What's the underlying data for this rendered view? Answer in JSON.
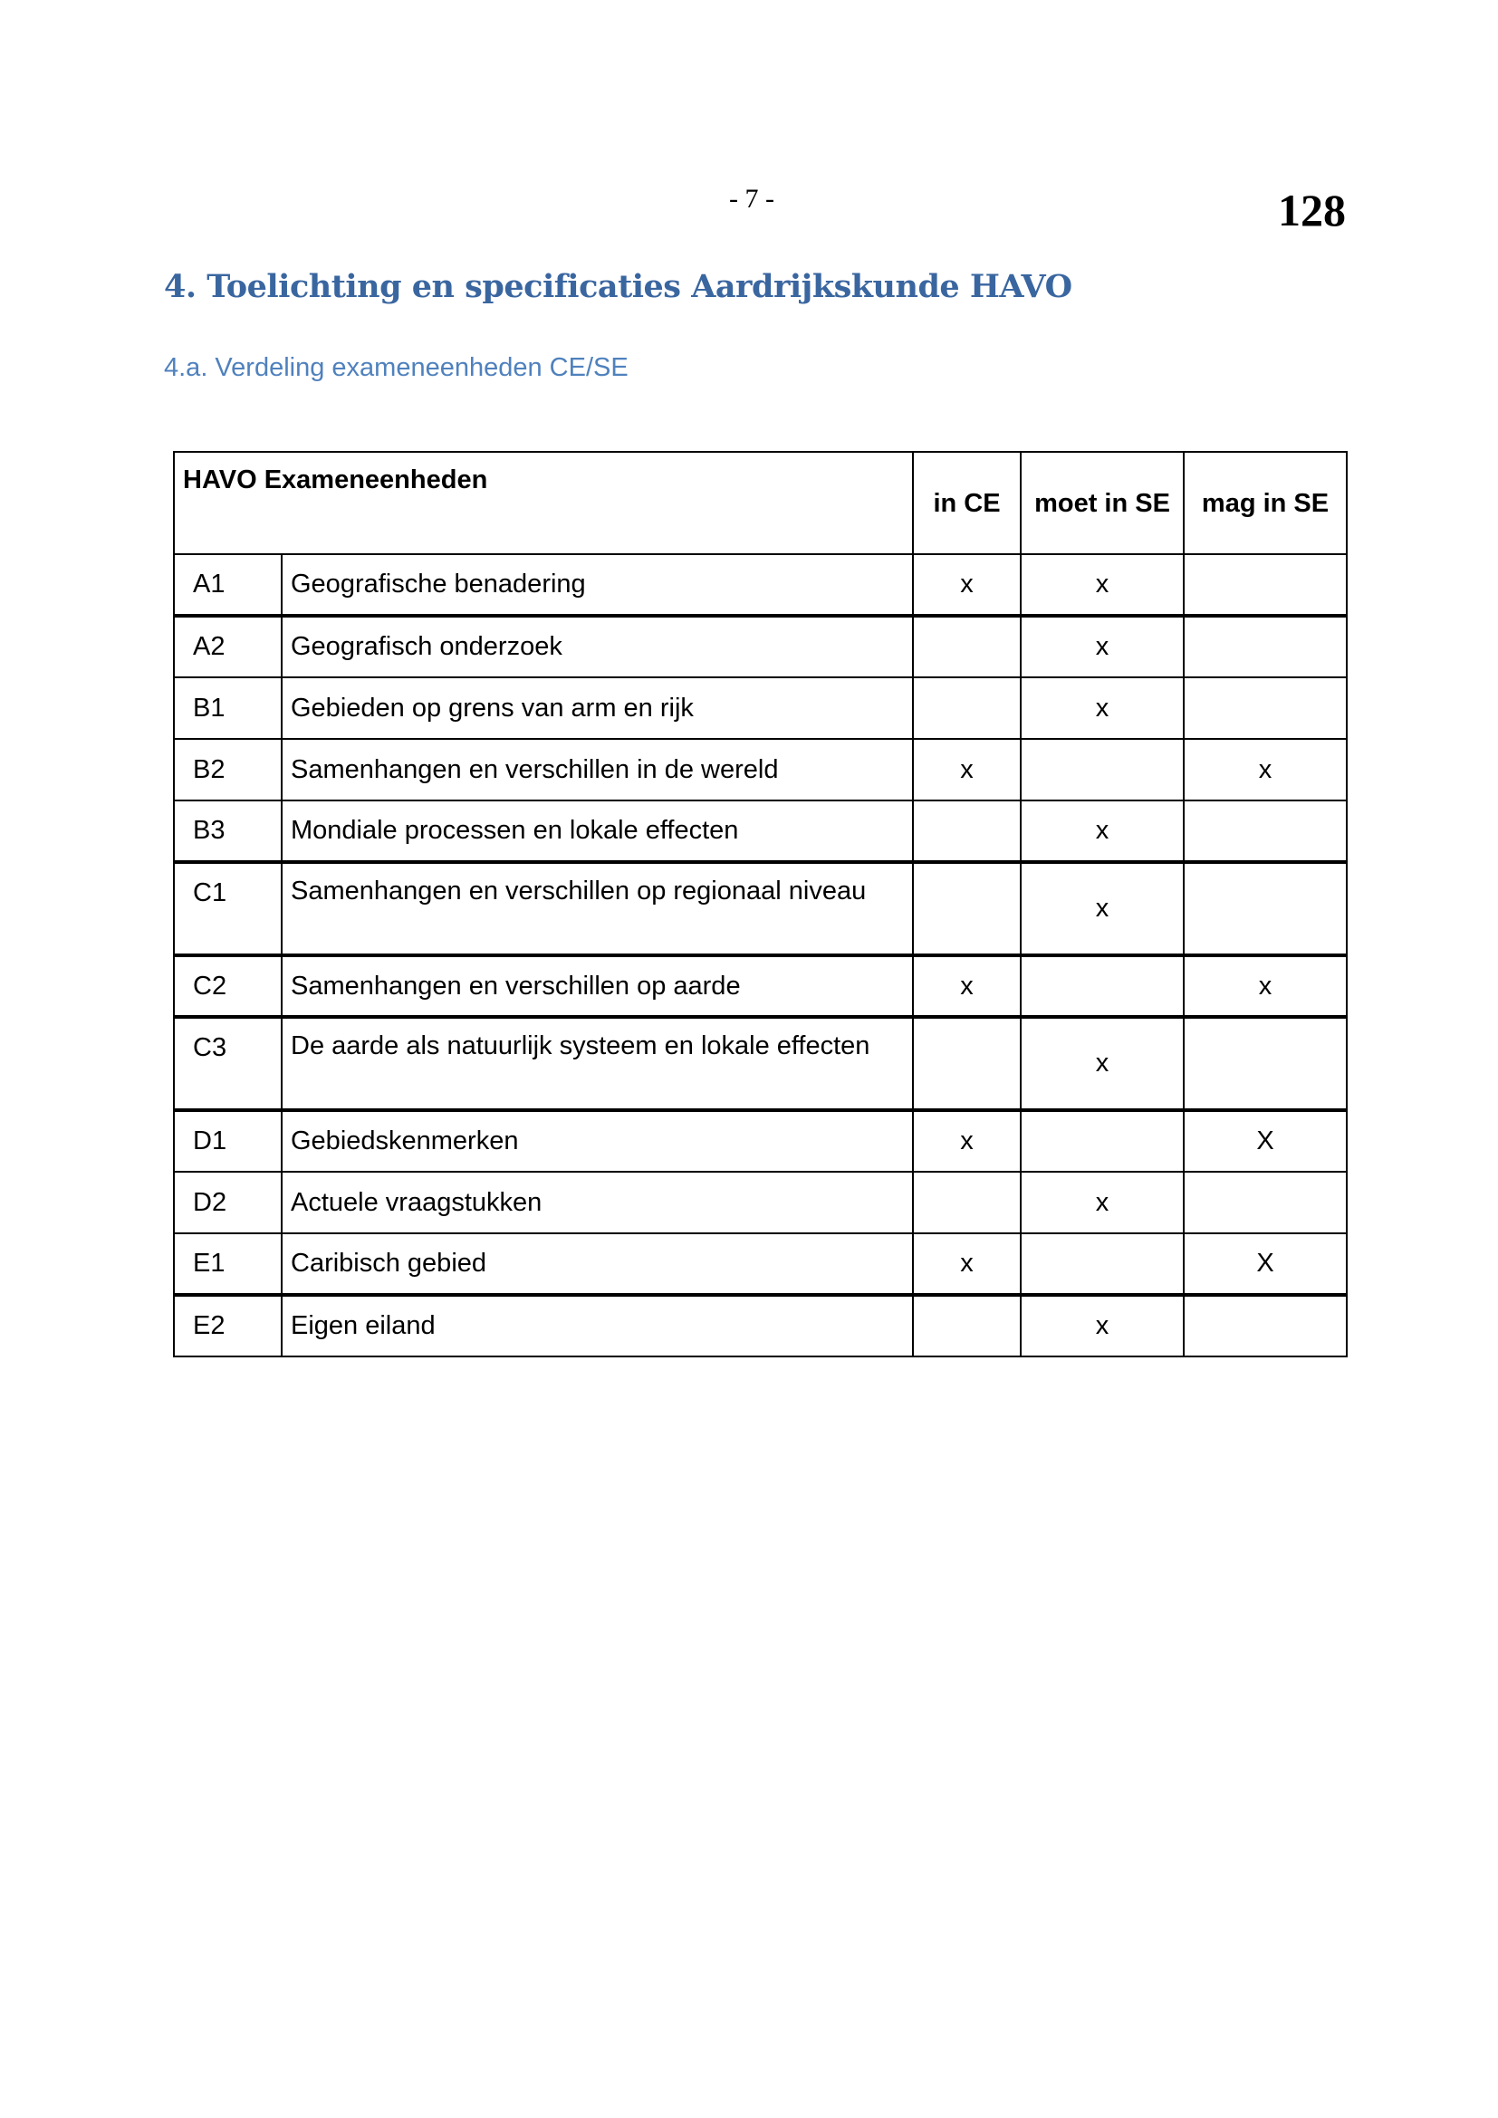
{
  "page_number": "- 7 -",
  "sheet_number": "128",
  "heading": "4. Toelichting en specificaties Aardrijkskunde HAVO",
  "subheading": "4.a. Verdeling exameneenheden CE/SE",
  "table": {
    "headers": [
      "HAVO Exameneenheden",
      "in CE",
      "moet in SE",
      "mag in SE"
    ],
    "rows": [
      {
        "code": "A1",
        "desc": "Geografische benadering",
        "ce": "x",
        "moet": "x",
        "mag": ""
      },
      {
        "code": "A2",
        "desc": "Geografisch onderzoek",
        "ce": "",
        "moet": "x",
        "mag": ""
      },
      {
        "code": "B1",
        "desc": "Gebieden op grens van arm en rijk",
        "ce": "",
        "moet": "x",
        "mag": ""
      },
      {
        "code": "B2",
        "desc": "Samenhangen en verschillen in de wereld",
        "ce": "x",
        "moet": "",
        "mag": "x"
      },
      {
        "code": "B3",
        "desc": "Mondiale processen en lokale effecten",
        "ce": "",
        "moet": "x",
        "mag": ""
      },
      {
        "code": "C1",
        "desc": "Samenhangen en verschillen op regionaal niveau",
        "ce": "",
        "moet": "x",
        "mag": ""
      },
      {
        "code": "C2",
        "desc": "Samenhangen en verschillen op aarde",
        "ce": "x",
        "moet": "",
        "mag": "x"
      },
      {
        "code": "C3",
        "desc": "De aarde als natuurlijk systeem en lokale effecten",
        "ce": "",
        "moet": "x",
        "mag": ""
      },
      {
        "code": "D1",
        "desc": "Gebiedskenmerken",
        "ce": "x",
        "moet": "",
        "mag": "X"
      },
      {
        "code": "D2",
        "desc": "Actuele vraagstukken",
        "ce": "",
        "moet": "x",
        "mag": ""
      },
      {
        "code": "E1",
        "desc": "Caribisch gebied",
        "ce": "x",
        "moet": "",
        "mag": "X"
      },
      {
        "code": "E2",
        "desc": "Eigen eiland",
        "ce": "",
        "moet": "x",
        "mag": ""
      }
    ]
  }
}
